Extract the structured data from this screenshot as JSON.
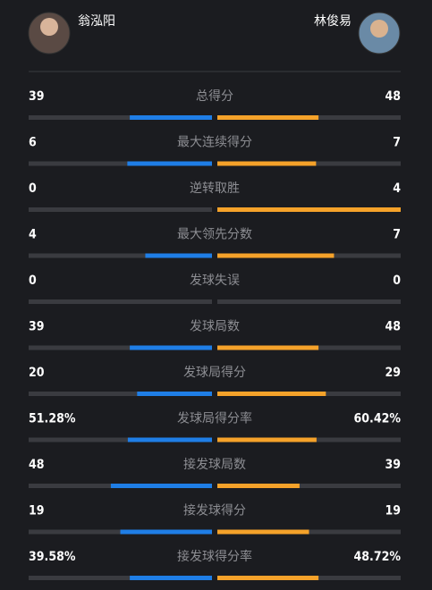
{
  "players": {
    "left": "翁泓阳",
    "right": "林俊易"
  },
  "rows": [
    {
      "label": "总得分",
      "left": 39,
      "right": 48
    },
    {
      "label": "最大连续得分",
      "left": 6,
      "right": 7
    },
    {
      "label": "逆转取胜",
      "left": 0,
      "right": 4
    },
    {
      "label": "最大领先分数",
      "left": 4,
      "right": 7
    },
    {
      "label": "发球失误",
      "left": 0,
      "right": 0
    },
    {
      "label": "发球局数",
      "left": 39,
      "right": 48
    },
    {
      "label": "发球局得分",
      "left": 20,
      "right": 29
    },
    {
      "label": "发球局得分率",
      "left": 51.28,
      "right": 60.42,
      "left_label": "51.28%",
      "right_label": "60.42%"
    },
    {
      "label": "接发球局数",
      "left": 48,
      "right": 39
    },
    {
      "label": "接发球得分",
      "left": 19,
      "right": 19
    },
    {
      "label": "接发球得分率",
      "left": 39.58,
      "right": 48.72,
      "left_label": "39.58%",
      "right_label": "48.72%"
    }
  ]
}
